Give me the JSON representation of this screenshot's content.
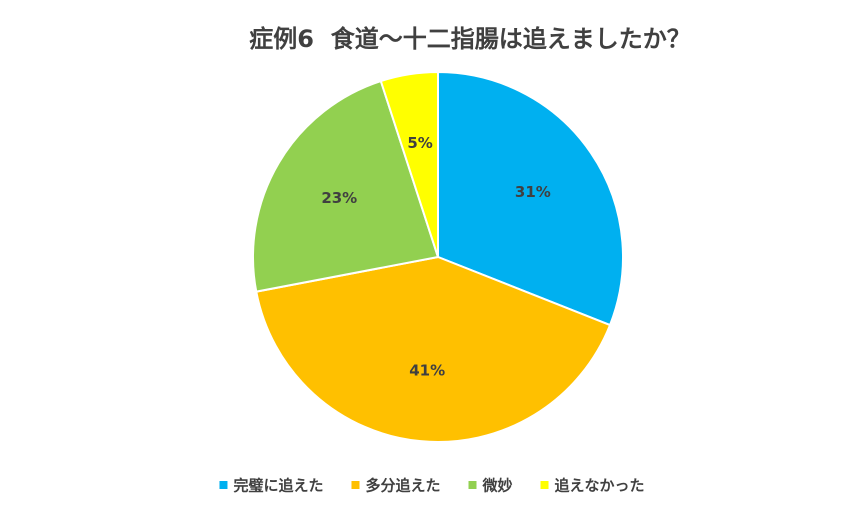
{
  "chart_data": {
    "type": "pie",
    "title": "症例6  食道～十二指腸は追えましたか？",
    "categories": [
      "完璧に追えた",
      "多分追えた",
      "微妙",
      "追えなかった"
    ],
    "values": [
      31,
      41,
      23,
      5
    ],
    "value_labels": [
      "31%",
      "41%",
      "23%",
      "5%"
    ],
    "colors": [
      "#00b0f0",
      "#ffc000",
      "#92d050",
      "#ffff00"
    ],
    "legend": "bottom"
  }
}
